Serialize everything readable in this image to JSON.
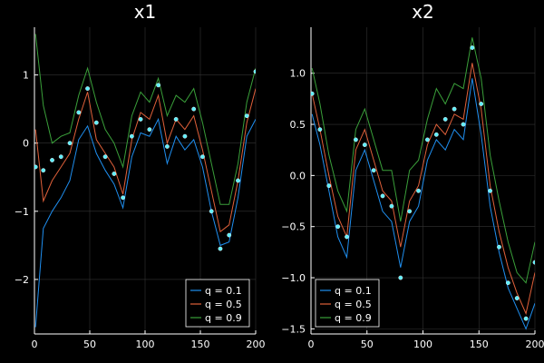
{
  "chart_data": [
    {
      "type": "line",
      "title": "x1",
      "xlabel": "",
      "ylabel": "",
      "xlim": [
        0,
        200
      ],
      "ylim": [
        -2.8,
        1.7
      ],
      "xticks": [
        0,
        50,
        100,
        150,
        200
      ],
      "yticks": [
        1,
        0,
        -1,
        -2
      ],
      "grid": true,
      "legend_position": "bottom-right",
      "x": [
        1,
        8,
        16,
        24,
        32,
        40,
        48,
        56,
        64,
        72,
        80,
        88,
        96,
        104,
        112,
        120,
        128,
        136,
        144,
        152,
        160,
        168,
        176,
        184,
        192,
        200
      ],
      "series": [
        {
          "name": "q = 0.1",
          "color": "#1f8ff0",
          "values": [
            -2.7,
            -1.25,
            -1.0,
            -0.8,
            -0.55,
            0.05,
            0.25,
            -0.15,
            -0.4,
            -0.6,
            -0.95,
            -0.2,
            0.15,
            0.1,
            0.35,
            -0.3,
            0.1,
            -0.1,
            0.05,
            -0.35,
            -1.0,
            -1.5,
            -1.45,
            -0.8,
            0.1,
            0.35
          ]
        },
        {
          "name": "q = 0.5",
          "color": "#e0603a",
          "values": [
            0.2,
            -0.85,
            -0.55,
            -0.35,
            -0.15,
            0.35,
            0.75,
            0.05,
            -0.15,
            -0.35,
            -0.75,
            0.05,
            0.45,
            0.35,
            0.7,
            0.0,
            0.35,
            0.2,
            0.4,
            -0.1,
            -0.7,
            -1.3,
            -1.2,
            -0.55,
            0.3,
            0.8
          ]
        },
        {
          "name": "q = 0.9",
          "color": "#3aa03a",
          "values": [
            1.6,
            0.55,
            0.0,
            0.1,
            0.15,
            0.7,
            1.1,
            0.6,
            0.2,
            0.0,
            -0.35,
            0.4,
            0.75,
            0.6,
            0.95,
            0.4,
            0.7,
            0.6,
            0.8,
            0.3,
            -0.3,
            -0.9,
            -0.9,
            -0.3,
            0.6,
            1.1
          ]
        }
      ],
      "points": {
        "color": "#5ff0ff",
        "x": [
          1,
          8,
          16,
          24,
          32,
          40,
          48,
          56,
          64,
          72,
          80,
          88,
          96,
          104,
          112,
          120,
          128,
          136,
          144,
          152,
          160,
          168,
          176,
          184,
          192,
          200
        ],
        "y": [
          -0.35,
          -0.4,
          -0.25,
          -0.2,
          0.0,
          0.45,
          0.8,
          0.3,
          -0.2,
          -0.45,
          -0.8,
          0.1,
          0.35,
          0.2,
          0.85,
          -0.05,
          0.35,
          0.1,
          0.5,
          -0.2,
          -1.0,
          -1.55,
          -1.35,
          -0.55,
          0.4,
          1.05
        ]
      },
      "legend": [
        "q = 0.1",
        "q = 0.5",
        "q = 0.9"
      ]
    },
    {
      "type": "line",
      "title": "x2",
      "xlabel": "",
      "ylabel": "",
      "xlim": [
        0,
        200
      ],
      "ylim": [
        -1.55,
        1.45
      ],
      "xticks": [
        0,
        50,
        100,
        150,
        200
      ],
      "yticks": [
        1.0,
        0.5,
        0.0,
        -0.5,
        -1.0,
        -1.5
      ],
      "grid": true,
      "legend_position": "bottom-left",
      "x": [
        1,
        8,
        16,
        24,
        32,
        40,
        48,
        56,
        64,
        72,
        80,
        88,
        96,
        104,
        112,
        120,
        128,
        136,
        144,
        152,
        160,
        168,
        176,
        184,
        192,
        200
      ],
      "series": [
        {
          "name": "q = 0.1",
          "color": "#1f8ff0",
          "values": [
            0.6,
            0.3,
            -0.15,
            -0.6,
            -0.8,
            0.05,
            0.25,
            -0.05,
            -0.35,
            -0.45,
            -0.9,
            -0.45,
            -0.3,
            0.15,
            0.35,
            0.25,
            0.45,
            0.35,
            0.95,
            0.4,
            -0.3,
            -0.75,
            -1.1,
            -1.3,
            -1.5,
            -1.25
          ]
        },
        {
          "name": "q = 0.5",
          "color": "#e0603a",
          "values": [
            0.8,
            0.45,
            0.0,
            -0.4,
            -0.6,
            0.25,
            0.45,
            0.15,
            -0.15,
            -0.25,
            -0.7,
            -0.25,
            -0.1,
            0.3,
            0.5,
            0.4,
            0.6,
            0.55,
            1.1,
            0.65,
            -0.1,
            -0.55,
            -0.9,
            -1.15,
            -1.35,
            -0.95
          ]
        },
        {
          "name": "q = 0.9",
          "color": "#3aa03a",
          "values": [
            1.05,
            0.7,
            0.2,
            -0.15,
            -0.35,
            0.45,
            0.65,
            0.35,
            0.05,
            0.05,
            -0.45,
            0.05,
            0.15,
            0.55,
            0.85,
            0.7,
            0.9,
            0.85,
            1.35,
            0.95,
            0.2,
            -0.25,
            -0.65,
            -0.95,
            -1.05,
            -0.65
          ]
        }
      ],
      "points": {
        "color": "#5ff0ff",
        "x": [
          1,
          8,
          16,
          24,
          32,
          40,
          48,
          56,
          64,
          72,
          80,
          88,
          96,
          104,
          112,
          120,
          128,
          136,
          144,
          152,
          160,
          168,
          176,
          184,
          192,
          200
        ],
        "y": [
          0.8,
          0.45,
          -0.1,
          -0.5,
          -0.6,
          0.35,
          0.3,
          0.05,
          -0.2,
          -0.3,
          -1.0,
          -0.35,
          -0.15,
          0.35,
          0.4,
          0.55,
          0.65,
          0.5,
          1.25,
          0.7,
          -0.15,
          -0.7,
          -1.05,
          -1.2,
          -1.4,
          -0.85
        ]
      },
      "legend": [
        "q = 0.1",
        "q = 0.5",
        "q = 0.9"
      ]
    }
  ]
}
